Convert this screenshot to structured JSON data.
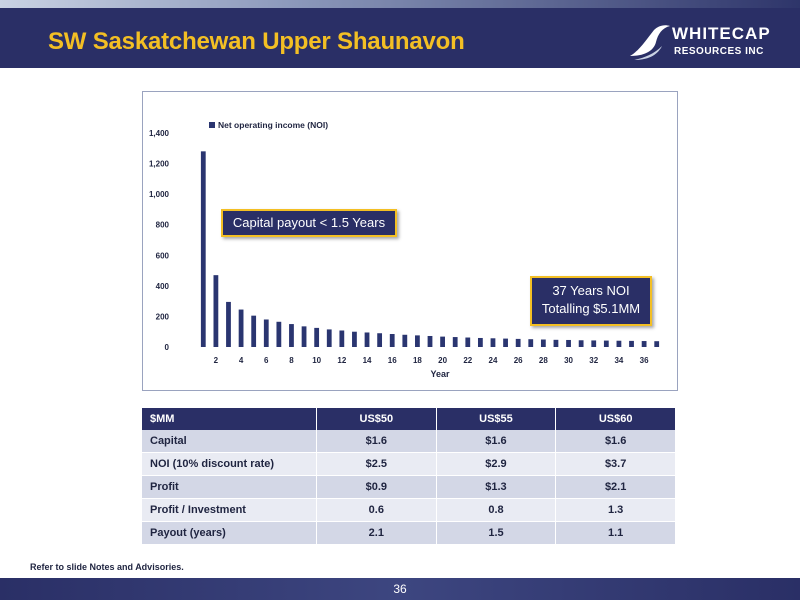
{
  "slide": {
    "title": "SW Saskatchewan Upper Shaunavon",
    "footnote": "Refer to slide Notes and Advisories.",
    "page_number": "36"
  },
  "logo": {
    "name": "WHITECAP",
    "sub": "RESOURCES INC"
  },
  "colors": {
    "navy": "#2a2f66",
    "gold": "#f3bf24",
    "bar": "#2a3570"
  },
  "callouts": {
    "payout": "Capital payout < 1.5 Years",
    "noi_line1": "37 Years NOI",
    "noi_line2": "Totalling $5.1MM"
  },
  "chart_data": {
    "type": "bar",
    "legend": "Net operating income (NOI)",
    "legend_position": "top-left",
    "xlabel": "Year",
    "ylabel": "",
    "ylim": [
      0,
      1400
    ],
    "yticks": [
      0,
      200,
      400,
      600,
      800,
      1000,
      1200,
      1400
    ],
    "ytick_labels": [
      "0",
      "200",
      "400",
      "600",
      "800",
      "1,000",
      "1,200",
      "1,400"
    ],
    "xtick_labels": [
      "2",
      "4",
      "6",
      "8",
      "10",
      "12",
      "14",
      "16",
      "18",
      "20",
      "22",
      "24",
      "26",
      "28",
      "30",
      "32",
      "34",
      "36"
    ],
    "grid": false,
    "categories": [
      1,
      2,
      3,
      4,
      5,
      6,
      7,
      8,
      9,
      10,
      11,
      12,
      13,
      14,
      15,
      16,
      17,
      18,
      19,
      20,
      21,
      22,
      23,
      24,
      25,
      26,
      27,
      28,
      29,
      30,
      31,
      32,
      33,
      34,
      35,
      36,
      37
    ],
    "series": [
      {
        "name": "Net operating income (NOI)",
        "values": [
          1280,
          470,
          295,
          245,
          205,
          180,
          165,
          150,
          135,
          125,
          115,
          108,
          100,
          95,
          90,
          85,
          80,
          76,
          72,
          68,
          65,
          62,
          59,
          57,
          55,
          53,
          51,
          49,
          47,
          46,
          44,
          43,
          42,
          41,
          40,
          39,
          38
        ]
      }
    ]
  },
  "table": {
    "headers": [
      "$MM",
      "US$50",
      "US$55",
      "US$60"
    ],
    "rows": [
      [
        "Capital",
        "$1.6",
        "$1.6",
        "$1.6"
      ],
      [
        "NOI (10% discount rate)",
        "$2.5",
        "$2.9",
        "$3.7"
      ],
      [
        "Profit",
        "$0.9",
        "$1.3",
        "$2.1"
      ],
      [
        "Profit / Investment",
        "0.6",
        "0.8",
        "1.3"
      ],
      [
        "Payout (years)",
        "2.1",
        "1.5",
        "1.1"
      ]
    ]
  }
}
